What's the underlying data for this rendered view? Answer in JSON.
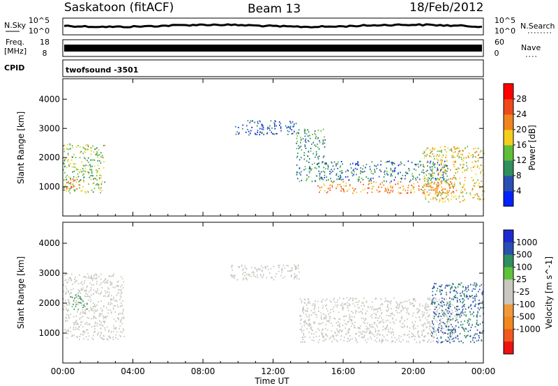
{
  "header": {
    "site": "Saskatoon (fitACF)",
    "beam": "Beam 13",
    "date": "18/Feb/2012"
  },
  "top_panels": {
    "nsky_label": "N.Sky",
    "nsky_ticks": [
      "10^5",
      "10^0"
    ],
    "nsearch_label": "N.Search",
    "nsearch_ticks": [
      "10^5",
      "10^0"
    ],
    "freq_label": "Freq.",
    "freq_unit": "[MHz]",
    "freq_ticks": [
      "18",
      "8"
    ],
    "nave_label": "Nave",
    "nave_ticks": [
      "60",
      "0"
    ],
    "cpid_label": "CPID",
    "cpid_value": "twofsound -3501"
  },
  "colors": {
    "power_scale": [
      "#0022ff",
      "#2a4fb0",
      "#2f8f5f",
      "#5fbe3a",
      "#f5cd1e",
      "#f0841e",
      "#ee4a1e",
      "#ff0000"
    ],
    "velocity_scale": [
      "#ee1111",
      "#f05a1e",
      "#f0881e",
      "#ef9a3a",
      "#c8c8c0",
      "#c8c8c0",
      "#5ec33a",
      "#2f8f5f",
      "#2a4fb0",
      "#1e2ad0"
    ],
    "ground_scatter": "#c8c8c0"
  },
  "chart_data": [
    {
      "type": "heatmap",
      "title": "",
      "xlabel": "",
      "ylabel": "Slant Range [km]",
      "x_ticks": [
        "00:00",
        "04:00",
        "08:00",
        "12:00",
        "16:00",
        "20:00",
        "00:00"
      ],
      "y_ticks": [
        "1000",
        "2000",
        "3000",
        "4000"
      ],
      "ylim": [
        0,
        4700
      ],
      "colorbar_label": "Power [dB]",
      "colorbar_ticks": [
        "4",
        "8",
        "12",
        "16",
        "20",
        "24",
        "28"
      ],
      "clim": [
        0,
        32
      ],
      "regions": [
        {
          "t": [
            0.0,
            2.4
          ],
          "range": [
            800,
            2500
          ],
          "power": 14
        },
        {
          "t": [
            0.0,
            1.0
          ],
          "range": [
            900,
            1300
          ],
          "power": 24
        },
        {
          "t": [
            9.8,
            13.3
          ],
          "range": [
            2800,
            3300
          ],
          "power": 6
        },
        {
          "t": [
            13.3,
            15.0
          ],
          "range": [
            1200,
            3000
          ],
          "power": 10
        },
        {
          "t": [
            15.0,
            22.0
          ],
          "range": [
            1200,
            1900
          ],
          "power": 8
        },
        {
          "t": [
            14.5,
            22.5
          ],
          "range": [
            800,
            1200
          ],
          "power": 22
        },
        {
          "t": [
            20.5,
            24.0
          ],
          "range": [
            500,
            2400
          ],
          "power": 18
        }
      ]
    },
    {
      "type": "heatmap",
      "title": "",
      "xlabel": "Time UT",
      "ylabel": "Slant Range [km]",
      "x_ticks": [
        "00:00",
        "04:00",
        "08:00",
        "12:00",
        "16:00",
        "20:00",
        "00:00"
      ],
      "y_ticks": [
        "1000",
        "2000",
        "3000",
        "4000"
      ],
      "ylim": [
        0,
        4700
      ],
      "colorbar_label": "Velocity [m s^-1]",
      "colorbar_ticks": [
        "1000",
        "500",
        "100",
        "25",
        "-25",
        "-100",
        "-500",
        "-1000"
      ],
      "clim": [
        -1250,
        1250
      ],
      "regions": [
        {
          "t": [
            0.0,
            3.5
          ],
          "range": [
            800,
            3000
          ],
          "velocity": 0
        },
        {
          "t": [
            0.4,
            1.4
          ],
          "range": [
            1800,
            2300
          ],
          "velocity": 150
        },
        {
          "t": [
            9.5,
            13.5
          ],
          "range": [
            2800,
            3300
          ],
          "velocity": 0
        },
        {
          "t": [
            13.5,
            22.5
          ],
          "range": [
            700,
            2200
          ],
          "velocity": 0
        },
        {
          "t": [
            21.0,
            24.0
          ],
          "range": [
            700,
            2700
          ],
          "velocity": 600
        }
      ]
    }
  ]
}
